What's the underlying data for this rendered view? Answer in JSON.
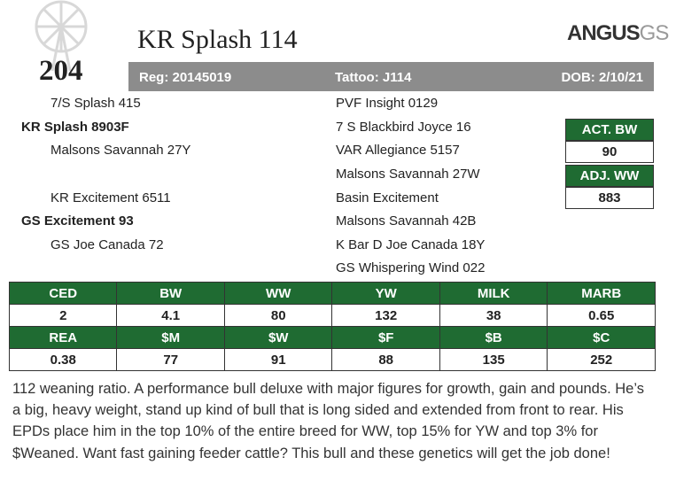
{
  "header": {
    "lot": "204",
    "title": "KR Splash 114",
    "logo_main": "ANGUS",
    "logo_sub": "GS",
    "registration": "Reg: 20145019",
    "tattoo": "Tattoo: J114",
    "dob": "DOB: 2/10/21"
  },
  "pedigree": {
    "left": [
      "7/S Splash 415",
      "KR Splash 8903F",
      "Malsons Savannah 27Y",
      "KR Excitement 6511",
      "GS Excitement 93",
      "GS Joe Canada 72"
    ],
    "right": [
      "PVF Insight 0129",
      "7 S Blackbird Joyce 16",
      "VAR Allegiance 5157",
      "Malsons Savannah 27W",
      "Basin Excitement",
      "Malsons Savannah 42B",
      "K Bar D Joe Canada 18Y",
      "GS Whispering Wind 022"
    ]
  },
  "weights": {
    "act_bw_label": "ACT. BW",
    "act_bw": 90,
    "adj_ww_label": "ADJ. WW",
    "adj_ww": 883
  },
  "table": {
    "rows": [
      [
        "CED",
        "BW",
        "WW",
        "YW",
        "MILK",
        "MARB"
      ],
      [
        2,
        4.1,
        80,
        132,
        38,
        0.65
      ],
      [
        "REA",
        "$M",
        "$W",
        "$F",
        "$B",
        "$C"
      ],
      [
        0.38,
        77,
        91,
        88,
        135,
        252
      ]
    ]
  },
  "description": "112 weaning ratio. A performance bull deluxe with major figures for growth, gain and pounds. He’s a big, heavy weight, stand up kind of bull that is long sided and extended from front to rear. His EPDs place him in the top 10% of the entire breed for WW, top 15% for YW and top 3% for $Weaned. Want fast gaining feeder cattle? This bull and these genetics will get the job done!"
}
